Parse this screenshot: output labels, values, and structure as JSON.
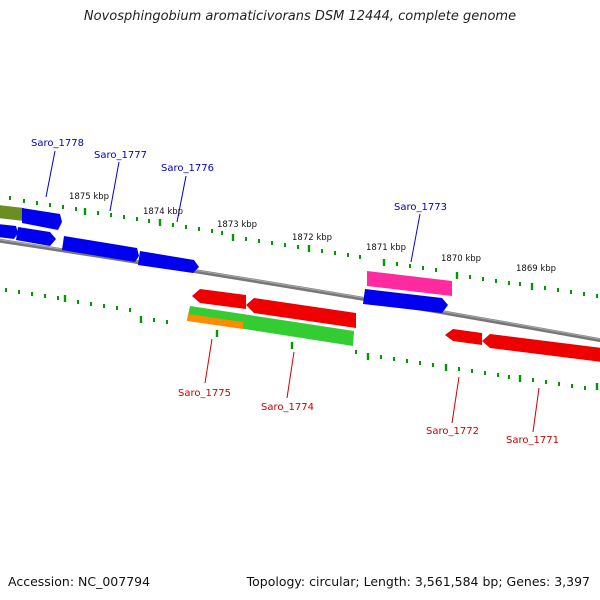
{
  "title": "Novosphingobium aromaticivorans DSM 12444, complete genome",
  "footer": {
    "accession": "Accession: NC_007794",
    "summary": "Topology: circular; Length: 3,561,584 bp; Genes: 3,397"
  },
  "colors": {
    "forward_gene": "#0000ee",
    "reverse_gene": "#ee0000",
    "forward_label": "#0000cc",
    "reverse_label": "#cc0000",
    "pink_feature": "#ff2aa0",
    "green_feature": "#33cc33",
    "olive_feature": "#6b8e23",
    "orange_feature": "#ff8c00",
    "backbone": "#808080",
    "ticks": "#009900"
  },
  "kbp_labels": [
    "1875 kbp",
    "1874 kbp",
    "1873 kbp",
    "1872 kbp",
    "1871 kbp",
    "1870 kbp",
    "1869 kbp"
  ],
  "gene_labels": {
    "forward": [
      "Saro_1778",
      "Saro_1777",
      "Saro_1776",
      "Saro_1773"
    ],
    "reverse": [
      "Saro_1775",
      "Saro_1774",
      "Saro_1772",
      "Saro_1771"
    ]
  }
}
